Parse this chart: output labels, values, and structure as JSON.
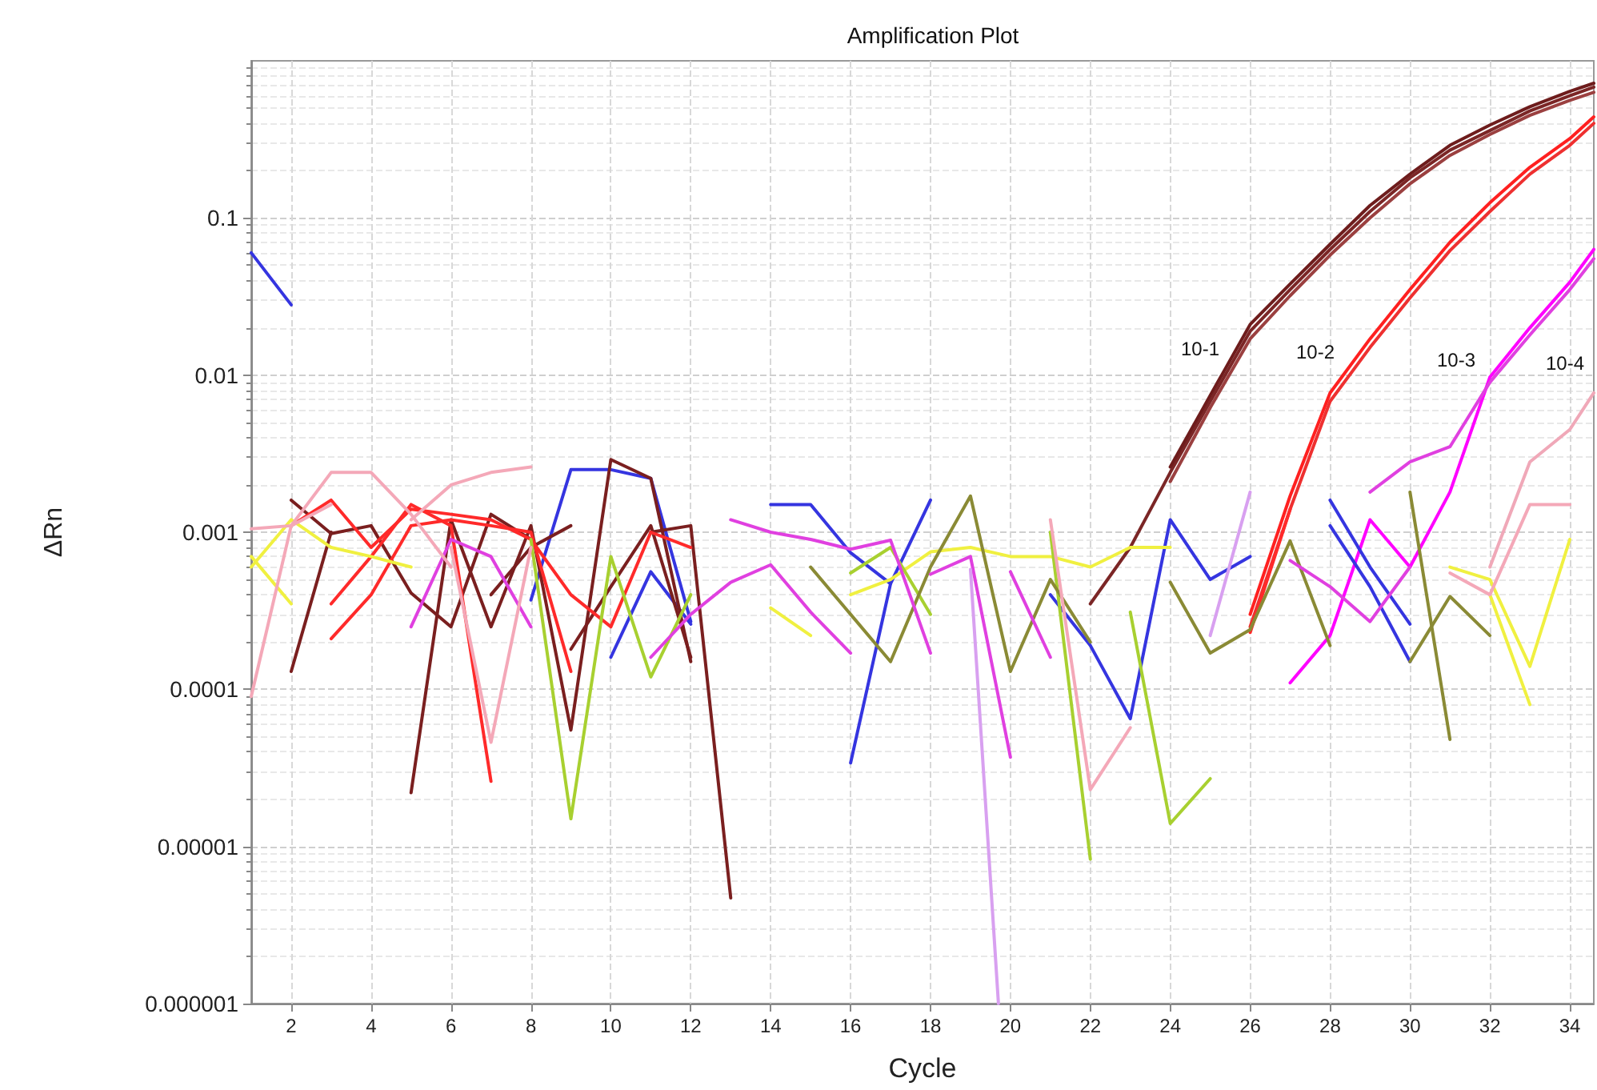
{
  "chart_data": {
    "type": "line",
    "title": "Amplification Plot",
    "xlabel": "Cycle",
    "ylabel": "ΔRn",
    "log": "y",
    "grid": true,
    "marker": "none",
    "line_style": "solid",
    "xlim": [
      1,
      34.6
    ],
    "xticks": [
      2,
      4,
      6,
      8,
      10,
      12,
      14,
      16,
      18,
      20,
      22,
      24,
      26,
      28,
      30,
      32,
      34
    ],
    "ylim": [
      1e-06,
      1
    ],
    "yticks": [
      {
        "value": 1e-06,
        "label": "0.000001"
      },
      {
        "value": 1e-05,
        "label": "0.00001"
      },
      0.0001,
      0.001,
      0.01,
      0.1
    ],
    "annotations": [
      "10-1",
      "10-2",
      "10-3",
      "10-4"
    ],
    "series": [
      {
        "color": "#7b2626",
        "x": [
          22,
          23,
          24,
          25,
          26,
          27,
          28,
          29,
          30,
          31,
          32,
          33,
          34,
          34.6
        ],
        "values": [
          0.00035,
          0.0008,
          0.0024,
          0.0068,
          0.019,
          0.035,
          0.063,
          0.11,
          0.18,
          0.27,
          0.36,
          0.48,
          0.6,
          0.68
        ]
      },
      {
        "color": "#9b4040",
        "x": [
          24,
          25,
          26,
          27,
          28,
          29,
          30,
          31,
          32,
          33,
          34,
          34.6
        ],
        "values": [
          0.0021,
          0.0062,
          0.017,
          0.032,
          0.058,
          0.1,
          0.165,
          0.25,
          0.34,
          0.45,
          0.56,
          0.63
        ]
      },
      {
        "color": "#6e1c1c",
        "x": [
          24,
          25,
          26,
          27,
          28,
          29,
          30,
          31,
          32,
          33,
          34,
          34.6
        ],
        "values": [
          0.0026,
          0.0074,
          0.021,
          0.038,
          0.068,
          0.12,
          0.19,
          0.29,
          0.39,
          0.51,
          0.64,
          0.72
        ]
      },
      {
        "color": "#ff2020",
        "x": [
          26,
          27,
          28,
          29,
          30,
          31,
          32,
          33,
          34,
          34.6
        ],
        "values": [
          0.0003,
          0.0017,
          0.0077,
          0.017,
          0.035,
          0.07,
          0.125,
          0.21,
          0.32,
          0.44
        ]
      },
      {
        "color": "#ee3030",
        "x": [
          26,
          27,
          28,
          29,
          30,
          31,
          32,
          33,
          34,
          34.6
        ],
        "values": [
          0.00025,
          0.0014,
          0.0068,
          0.015,
          0.031,
          0.062,
          0.11,
          0.19,
          0.29,
          0.4
        ]
      },
      {
        "color": "#ff00ff",
        "x": [
          27,
          28,
          29,
          30,
          31,
          32,
          33,
          34,
          34.6
        ],
        "values": [
          0.00011,
          0.00022,
          0.0012,
          0.0006,
          0.0018,
          0.0097,
          0.02,
          0.039,
          0.063
        ]
      },
      {
        "color": "#e040e0",
        "x": [
          29,
          30,
          31,
          32,
          33,
          34,
          34.6
        ],
        "values": [
          0.0018,
          0.0028,
          0.0035,
          0.009,
          0.018,
          0.035,
          0.055
        ]
      },
      {
        "color": "#f0a8b8",
        "x": [
          32,
          33,
          34,
          34.6
        ],
        "values": [
          0.0006,
          0.0028,
          0.0045,
          0.0077
        ]
      },
      {
        "color": "#3535e0",
        "x": [
          1,
          2
        ],
        "values": [
          0.06,
          0.028
        ]
      },
      {
        "color": "#3535e0",
        "x": [
          8,
          9,
          10,
          11,
          12
        ],
        "values": [
          0.00037,
          0.0025,
          0.0025,
          0.0022,
          0.00027
        ]
      },
      {
        "color": "#3535e0",
        "x": [
          10,
          11,
          12
        ],
        "values": [
          0.00016,
          0.00056,
          0.00026
        ]
      },
      {
        "color": "#3535e0",
        "x": [
          14,
          15,
          16,
          17,
          18
        ],
        "values": [
          0.0015,
          0.0015,
          0.00074,
          0.00047,
          0.0016
        ]
      },
      {
        "color": "#3535e0",
        "x": [
          16,
          17
        ],
        "values": [
          3.4e-05,
          0.00047
        ]
      },
      {
        "color": "#3535e0",
        "x": [
          21,
          22,
          23,
          24,
          25,
          26
        ],
        "values": [
          0.0004,
          0.00019,
          6.5e-05,
          0.0012,
          0.0005,
          0.0007
        ]
      },
      {
        "color": "#3535e0",
        "x": [
          28,
          29,
          30
        ],
        "values": [
          0.0016,
          0.0006,
          0.00026
        ]
      },
      {
        "color": "#3535e0",
        "x": [
          28,
          29,
          30
        ],
        "values": [
          0.0011,
          0.00045,
          0.00015
        ]
      },
      {
        "color": "#7a1f1f",
        "x": [
          2,
          3,
          4,
          5,
          6,
          7,
          8
        ],
        "values": [
          0.0016,
          0.00098,
          0.0011,
          0.00041,
          0.00025,
          0.0013,
          0.0009
        ]
      },
      {
        "color": "#7a1f1f",
        "x": [
          2,
          3
        ],
        "values": [
          0.00013,
          0.001
        ]
      },
      {
        "color": "#7a1f1f",
        "x": [
          5,
          6,
          7,
          8,
          9,
          10,
          11,
          12
        ],
        "values": [
          2.2e-05,
          0.0012,
          0.00025,
          0.0011,
          5.5e-05,
          0.0029,
          0.0022,
          0.00015
        ]
      },
      {
        "color": "#7a1f1f",
        "x": [
          11,
          12,
          13
        ],
        "values": [
          0.001,
          0.0011,
          4.7e-06
        ]
      },
      {
        "color": "#7a1f1f",
        "x": [
          7,
          8,
          9
        ],
        "values": [
          0.0004,
          0.0008,
          0.0011
        ]
      },
      {
        "color": "#7a1f1f",
        "x": [
          9,
          10,
          11,
          12
        ],
        "values": [
          0.00018,
          0.00045,
          0.0011,
          0.00016
        ]
      },
      {
        "color": "#ff2a2a",
        "x": [
          2,
          3,
          4,
          5,
          6,
          7,
          8,
          9,
          10,
          11,
          12
        ],
        "values": [
          0.0011,
          0.0016,
          0.0008,
          0.0014,
          0.0013,
          0.0012,
          0.0009,
          0.0004,
          0.00025,
          0.001,
          0.0008
        ]
      },
      {
        "color": "#ff2a2a",
        "x": [
          3,
          4,
          5,
          6,
          7
        ],
        "values": [
          0.00035,
          0.0007,
          0.0015,
          0.0011,
          2.6e-05
        ]
      },
      {
        "color": "#ff2a2a",
        "x": [
          3,
          4,
          5,
          6,
          7,
          8,
          9
        ],
        "values": [
          0.00021,
          0.0004,
          0.0011,
          0.0012,
          0.0011,
          0.001,
          0.00013
        ]
      },
      {
        "color": "#ff2a2a",
        "x": [
          26,
          27
        ],
        "values": [
          0.00023,
          0.0014
        ]
      },
      {
        "color": "#f0f040",
        "x": [
          1,
          2,
          3,
          4,
          5
        ],
        "values": [
          0.0006,
          0.0012,
          0.0008,
          0.0007,
          0.0006
        ]
      },
      {
        "color": "#f0f040",
        "x": [
          1,
          2
        ],
        "values": [
          0.0007,
          0.00035
        ]
      },
      {
        "color": "#f0f040",
        "x": [
          14,
          15
        ],
        "values": [
          0.00033,
          0.00022
        ]
      },
      {
        "color": "#f0f040",
        "x": [
          16,
          17,
          18,
          19,
          20,
          21,
          22,
          23,
          24
        ],
        "values": [
          0.0004,
          0.0005,
          0.00075,
          0.0008,
          0.0007,
          0.0007,
          0.0006,
          0.0008,
          0.0008
        ]
      },
      {
        "color": "#f0f040",
        "x": [
          31,
          32,
          33,
          34
        ],
        "values": [
          0.0006,
          0.0005,
          0.00014,
          0.0009
        ]
      },
      {
        "color": "#f0f040",
        "x": [
          32,
          33
        ],
        "values": [
          0.0004,
          8e-05
        ]
      },
      {
        "color": "#a8d030",
        "x": [
          8,
          9,
          10,
          11,
          12
        ],
        "values": [
          0.0009,
          1.5e-05,
          0.0007,
          0.00012,
          0.0004
        ]
      },
      {
        "color": "#a8d030",
        "x": [
          16,
          17,
          18
        ],
        "values": [
          0.00055,
          0.0008,
          0.0003
        ]
      },
      {
        "color": "#a8d030",
        "x": [
          21,
          22
        ],
        "values": [
          0.001,
          8.3e-06
        ]
      },
      {
        "color": "#a8d030",
        "x": [
          23,
          24,
          25
        ],
        "values": [
          0.00031,
          1.4e-05,
          2.7e-05
        ]
      },
      {
        "color": "#8a8a35",
        "x": [
          15,
          16,
          17,
          18,
          19,
          20,
          21,
          22
        ],
        "values": [
          0.0006,
          0.0003,
          0.00015,
          0.0006,
          0.0017,
          0.00013,
          0.0005,
          0.0002
        ]
      },
      {
        "color": "#8a8a35",
        "x": [
          24,
          25,
          26,
          27,
          28
        ],
        "values": [
          0.00048,
          0.00017,
          0.00024,
          0.00088,
          0.00019
        ]
      },
      {
        "color": "#8a8a35",
        "x": [
          30,
          31
        ],
        "values": [
          0.0018,
          4.8e-05
        ]
      },
      {
        "color": "#8a8a35",
        "x": [
          30,
          31,
          32
        ],
        "values": [
          0.00015,
          0.00039,
          0.00022
        ]
      },
      {
        "color": "#e040e0",
        "x": [
          5,
          6,
          7,
          8
        ],
        "values": [
          0.00025,
          0.0009,
          0.0007,
          0.00025
        ]
      },
      {
        "color": "#e040e0",
        "x": [
          11,
          12,
          13,
          14,
          15,
          16
        ],
        "values": [
          0.00016,
          0.0003,
          0.00048,
          0.00062,
          0.00031,
          0.00017
        ]
      },
      {
        "color": "#e040e0",
        "x": [
          13,
          14,
          15,
          16,
          17,
          18
        ],
        "values": [
          0.0012,
          0.001,
          0.0009,
          0.00078,
          0.00089,
          0.00017
        ]
      },
      {
        "color": "#e040e0",
        "x": [
          18,
          19,
          20
        ],
        "values": [
          0.00054,
          0.0007,
          3.7e-05
        ]
      },
      {
        "color": "#e040e0",
        "x": [
          20,
          21
        ],
        "values": [
          0.00056,
          0.00016
        ]
      },
      {
        "color": "#e040e0",
        "x": [
          27,
          28,
          29,
          30
        ],
        "values": [
          0.00066,
          0.00045,
          0.00027,
          0.0006
        ]
      },
      {
        "color": "#f4a8b8",
        "x": [
          1,
          2,
          3,
          4,
          5,
          6
        ],
        "values": [
          9e-05,
          0.0011,
          0.0024,
          0.0024,
          0.0013,
          0.0006
        ]
      },
      {
        "color": "#f4a8b8",
        "x": [
          1,
          2,
          3
        ],
        "values": [
          0.00105,
          0.0011,
          0.0015
        ]
      },
      {
        "color": "#f4a8b8",
        "x": [
          5,
          6,
          7,
          8
        ],
        "values": [
          0.0012,
          0.002,
          0.0024,
          0.0026
        ]
      },
      {
        "color": "#f4a8b8",
        "x": [
          6,
          7,
          8
        ],
        "values": [
          0.0008,
          4.6e-05,
          0.0008
        ]
      },
      {
        "color": "#f4a8b8",
        "x": [
          21,
          22,
          23
        ],
        "values": [
          0.0012,
          2.3e-05,
          5.7e-05
        ]
      },
      {
        "color": "#f4a8b8",
        "x": [
          31,
          32,
          33,
          34
        ],
        "values": [
          0.00055,
          0.0004,
          0.0015,
          0.0015
        ]
      },
      {
        "color": "#d8a0f0",
        "x": [
          19,
          19.7
        ],
        "values": [
          0.00058,
          1e-06
        ]
      },
      {
        "color": "#d8a0f0",
        "x": [
          25,
          26
        ],
        "values": [
          0.00022,
          0.0018
        ]
      }
    ]
  }
}
